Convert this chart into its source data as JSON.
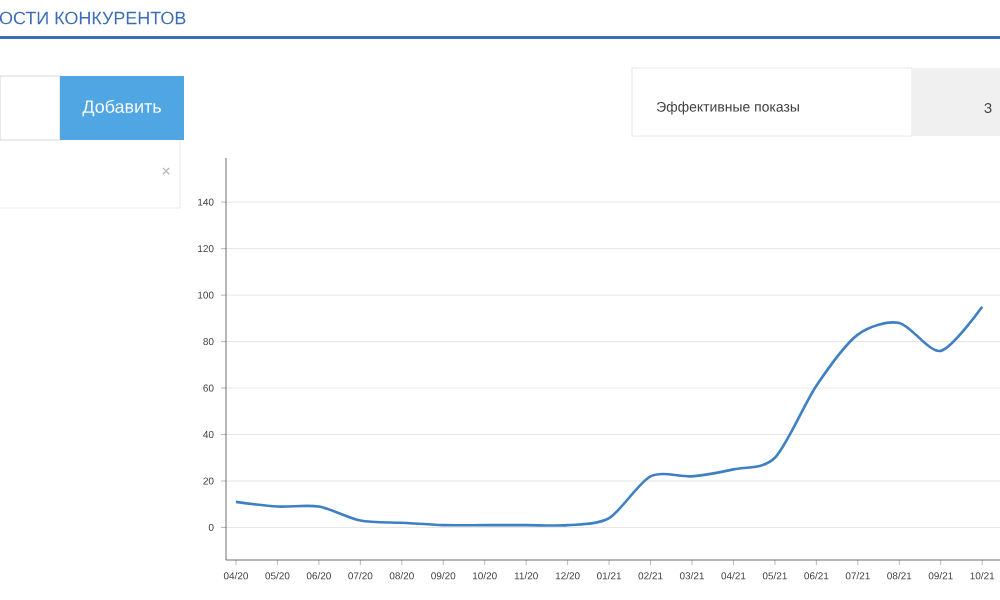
{
  "chart_data": {
    "type": "line",
    "title": "ОСТИ КОНКУРЕНТОВ",
    "annotations": [
      "Добавить",
      "Эффективные показы",
      "З",
      "×"
    ],
    "categories": [
      "04/20",
      "05/20",
      "06/20",
      "07/20",
      "08/20",
      "09/20",
      "10/20",
      "11/20",
      "12/20",
      "01/21",
      "02/21",
      "03/21",
      "04/21",
      "05/21",
      "06/21",
      "07/21",
      "08/21",
      "09/21",
      "10/21"
    ],
    "series": [
      {
        "color": "#3f80c3",
        "values": [
          11,
          9,
          9,
          3,
          2,
          1,
          1,
          1,
          1,
          4,
          22,
          22,
          25,
          30,
          61,
          83,
          88,
          76,
          95
        ]
      }
    ],
    "ylim": [
      -14,
      159
    ],
    "yticks": [
      0,
      20,
      40,
      60,
      80,
      100,
      120,
      140
    ],
    "grid": "y",
    "marker": "none",
    "line_style": "solid"
  }
}
